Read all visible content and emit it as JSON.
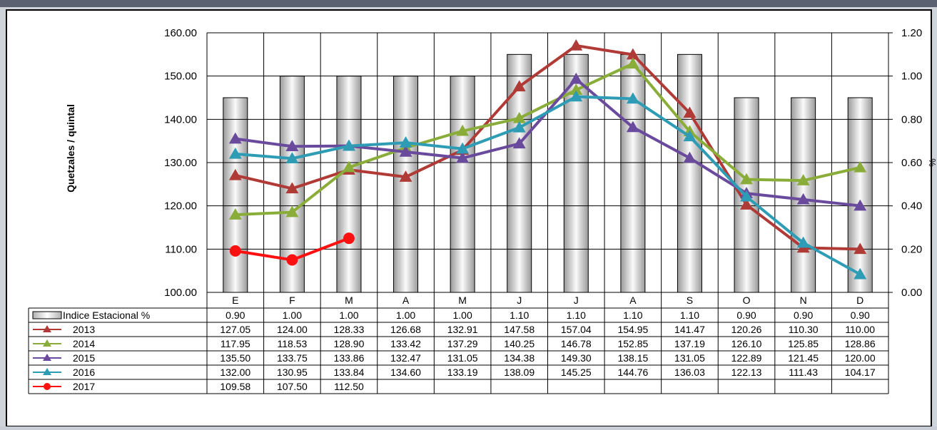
{
  "chart_data": {
    "type": "line",
    "ylabel": "Quetzales / quintal",
    "y2label": "%",
    "categories": [
      "E",
      "F",
      "M",
      "A",
      "M",
      "J",
      "J",
      "A",
      "S",
      "O",
      "N",
      "D"
    ],
    "ylim": [
      100,
      160
    ],
    "yticks": [
      "100.00",
      "110.00",
      "120.00",
      "130.00",
      "140.00",
      "150.00",
      "160.00"
    ],
    "y2lim": [
      0,
      1.2
    ],
    "y2ticks": [
      "0.00",
      "0.20",
      "0.40",
      "0.60",
      "0.80",
      "1.00",
      "1.20"
    ],
    "grid": true,
    "bars": {
      "name": "Indice Estacional %",
      "values": [
        0.9,
        1.0,
        1.0,
        1.0,
        1.0,
        1.1,
        1.1,
        1.1,
        1.1,
        0.9,
        0.9,
        0.9
      ],
      "labels": [
        "0.90",
        "1.00",
        "1.00",
        "1.00",
        "1.00",
        "1.10",
        "1.10",
        "1.10",
        "1.10",
        "0.90",
        "0.90",
        "0.90"
      ]
    },
    "series": [
      {
        "name": "2013",
        "color": "#b03a36",
        "marker": "triangle",
        "values": [
          127.05,
          124.0,
          128.33,
          126.68,
          132.91,
          147.58,
          157.04,
          154.95,
          141.47,
          120.26,
          110.3,
          110.0
        ],
        "labels": [
          "127.05",
          "124.00",
          "128.33",
          "126.68",
          "132.91",
          "147.58",
          "157.04",
          "154.95",
          "141.47",
          "120.26",
          "110.30",
          "110.00"
        ]
      },
      {
        "name": "2014",
        "color": "#8aad3a",
        "marker": "triangle",
        "values": [
          117.95,
          118.53,
          128.9,
          133.42,
          137.29,
          140.25,
          146.78,
          152.85,
          137.19,
          126.1,
          125.85,
          128.86
        ],
        "labels": [
          "117.95",
          "118.53",
          "128.90",
          "133.42",
          "137.29",
          "140.25",
          "146.78",
          "152.85",
          "137.19",
          "126.10",
          "125.85",
          "128.86"
        ]
      },
      {
        "name": "2015",
        "color": "#6a4a9c",
        "marker": "triangle",
        "values": [
          135.5,
          133.75,
          133.86,
          132.47,
          131.05,
          134.38,
          149.3,
          138.15,
          131.05,
          122.89,
          121.45,
          120.0
        ],
        "labels": [
          "135.50",
          "133.75",
          "133.86",
          "132.47",
          "131.05",
          "134.38",
          "149.30",
          "138.15",
          "131.05",
          "122.89",
          "121.45",
          "120.00"
        ]
      },
      {
        "name": "2016",
        "color": "#2e9cb4",
        "marker": "triangle",
        "values": [
          132.0,
          130.95,
          133.84,
          134.6,
          133.19,
          138.09,
          145.25,
          144.76,
          136.03,
          122.13,
          111.43,
          104.17
        ],
        "labels": [
          "132.00",
          "130.95",
          "133.84",
          "134.60",
          "133.19",
          "138.09",
          "145.25",
          "144.76",
          "136.03",
          "122.13",
          "111.43",
          "104.17"
        ]
      },
      {
        "name": "2017",
        "color": "#ff1010",
        "marker": "circle",
        "values": [
          109.58,
          107.5,
          112.5,
          null,
          null,
          null,
          null,
          null,
          null,
          null,
          null,
          null
        ],
        "labels": [
          "109.58",
          "107.50",
          "112.50",
          "",
          "",
          "",
          "",
          "",
          "",
          "",
          "",
          ""
        ]
      }
    ]
  }
}
